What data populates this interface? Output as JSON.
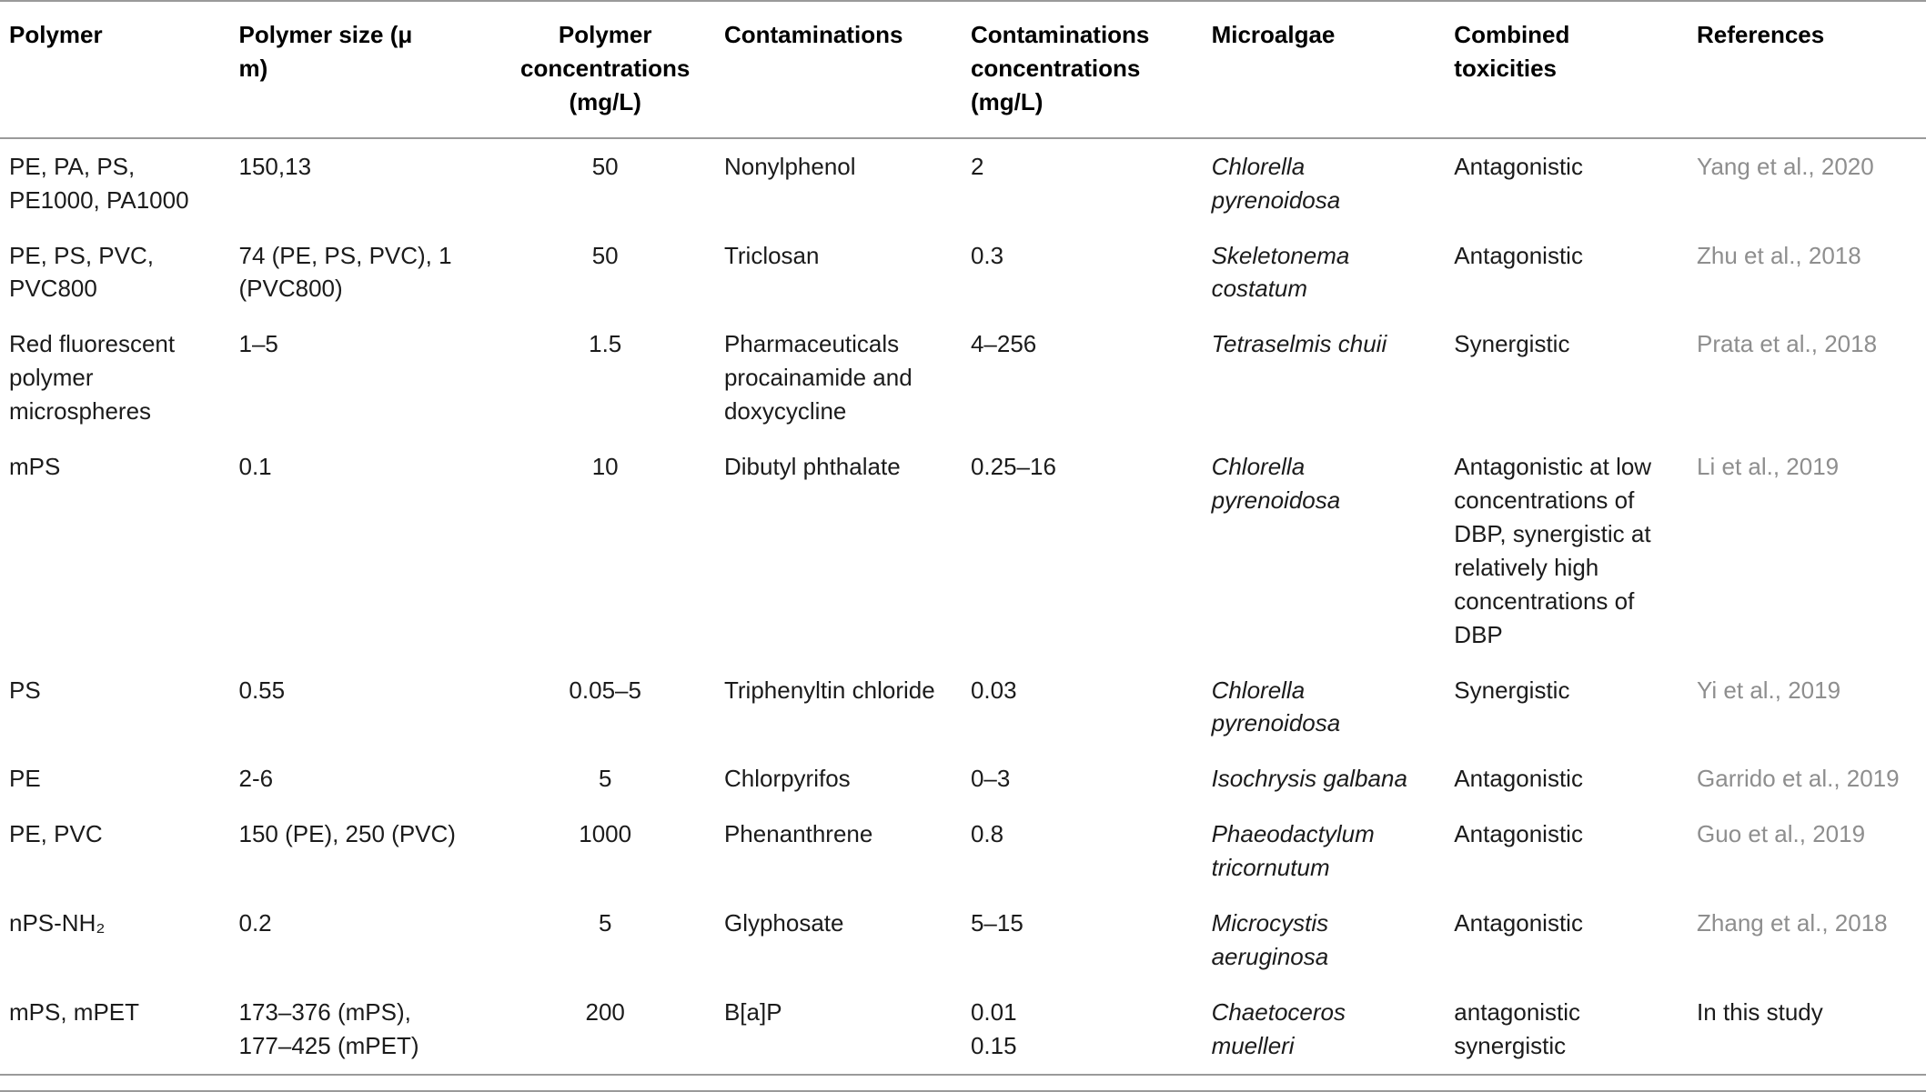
{
  "table": {
    "headers": [
      "Polymer",
      "Polymer size (μ\nm)",
      "Polymer\nconcentrations\n(mg/L)",
      "Contaminations",
      "Contaminations\nconcentrations\n(mg/L)",
      "Microalgae",
      "Combined\ntoxicities",
      "References"
    ],
    "rows": [
      {
        "polymer": "PE, PA, PS,\nPE1000, PA1000",
        "polymer_size": "150,13",
        "polymer_concentration": "50",
        "contamination": "Nonylphenol",
        "contamination_concentration": "2",
        "microalgae": "Chlorella\npyrenoidosa",
        "combined_toxicity": "Antagonistic",
        "reference": "Yang et al., 2020",
        "reference_style": "muted"
      },
      {
        "polymer": "PE, PS, PVC,\nPVC800",
        "polymer_size": "74 (PE, PS, PVC), 1\n(PVC800)",
        "polymer_concentration": "50",
        "contamination": "Triclosan",
        "contamination_concentration": "0.3",
        "microalgae": "Skeletonema\ncostatum",
        "combined_toxicity": "Antagonistic",
        "reference": "Zhu et al., 2018",
        "reference_style": "muted"
      },
      {
        "polymer": "Red fluorescent\npolymer\nmicrospheres",
        "polymer_size": "1–5",
        "polymer_concentration": "1.5",
        "contamination": "Pharmaceuticals\nprocainamide and\ndoxycycline",
        "contamination_concentration": "4–256",
        "microalgae": "Tetraselmis chuii",
        "combined_toxicity": "Synergistic",
        "reference": "Prata et al., 2018",
        "reference_style": "muted"
      },
      {
        "polymer": "mPS",
        "polymer_size": "0.1",
        "polymer_concentration": "10",
        "contamination": "Dibutyl phthalate",
        "contamination_concentration": "0.25–16",
        "microalgae": "Chlorella\npyrenoidosa",
        "combined_toxicity": "Antagonistic at low\nconcentrations of\nDBP, synergistic at\nrelatively high\nconcentrations of\nDBP",
        "reference": "Li et al., 2019",
        "reference_style": "muted"
      },
      {
        "polymer": "PS",
        "polymer_size": "0.55",
        "polymer_concentration": "0.05–5",
        "contamination": "Triphenyltin chloride",
        "contamination_concentration": "0.03",
        "microalgae": "Chlorella\npyrenoidosa",
        "combined_toxicity": "Synergistic",
        "reference": "Yi et al., 2019",
        "reference_style": "muted"
      },
      {
        "polymer": "PE",
        "polymer_size": "2-6",
        "polymer_concentration": "5",
        "contamination": "Chlorpyrifos",
        "contamination_concentration": "0–3",
        "microalgae": "Isochrysis galbana",
        "combined_toxicity": "Antagonistic",
        "reference": "Garrido et al., 2019",
        "reference_style": "muted"
      },
      {
        "polymer": "PE, PVC",
        "polymer_size": "150 (PE), 250 (PVC)",
        "polymer_concentration": "1000",
        "contamination": "Phenanthrene",
        "contamination_concentration": "0.8",
        "microalgae": "Phaeodactylum\ntricornutum",
        "combined_toxicity": "Antagonistic",
        "reference": "Guo et al., 2019",
        "reference_style": "muted"
      },
      {
        "polymer": "nPS-NH₂",
        "polymer_size": "0.2",
        "polymer_concentration": "5",
        "contamination": "Glyphosate",
        "contamination_concentration": "5–15",
        "microalgae": "Microcystis\naeruginosa",
        "combined_toxicity": "Antagonistic",
        "reference": "Zhang et al., 2018",
        "reference_style": "muted"
      },
      {
        "polymer": "mPS, mPET",
        "polymer_size": "173–376 (mPS),\n177–425 (mPET)",
        "polymer_concentration": "200",
        "contamination": "B[a]P",
        "contamination_concentration": "0.01\n0.15",
        "microalgae": "Chaetoceros\nmuelleri",
        "combined_toxicity": "antagonistic\nsynergistic",
        "reference": "In this study",
        "reference_style": "normal"
      }
    ],
    "colors": {
      "text": "#1b1b1b",
      "reference_muted": "#8e8e8e",
      "rule": "#9a9a9a",
      "background": "#ffffff"
    }
  }
}
